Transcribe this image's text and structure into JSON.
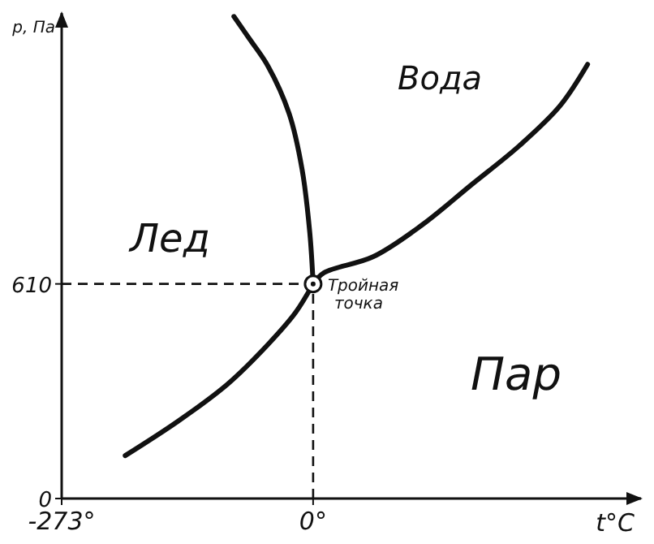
{
  "chart_data": {
    "type": "line",
    "xlabel": "t°C",
    "ylabel": "p, Па",
    "xlim": [
      -273,
      356
    ],
    "ylim": [
      0,
      1380
    ],
    "xticks": [
      {
        "value": -273,
        "label": "-273°"
      },
      {
        "value": 0,
        "label": "0°"
      }
    ],
    "yticks": [
      0,
      610
    ],
    "line_style": "solid",
    "marker": "none",
    "series": [
      {
        "color": "#111111",
        "x": [
          -204,
          -146,
          -93,
          -49,
          -19,
          0
        ],
        "values": [
          122,
          221,
          325,
          438,
          529,
          610
        ]
      },
      {
        "color": "#111111",
        "x": [
          0,
          -3.6,
          -12,
          -26,
          -49,
          -69,
          -86
        ],
        "values": [
          610,
          755,
          936,
          1094,
          1229,
          1306,
          1370
        ]
      },
      {
        "color": "#111111",
        "x": [
          0,
          12,
          65,
          118,
          171,
          224,
          268,
          298
        ],
        "values": [
          610,
          642,
          687,
          777,
          890,
          1003,
          1116,
          1234
        ]
      },
      {
        "type": "scatter",
        "marker": "circle",
        "color": "#111111",
        "x": [
          0
        ],
        "values": [
          610
        ]
      }
    ],
    "ref_lines": [
      {
        "axis": "y",
        "value": 610,
        "line_style": "dashed"
      },
      {
        "axis": "x",
        "value": 0,
        "line_style": "dashed"
      }
    ],
    "annotations": [
      {
        "text": "Тройная точка",
        "x": 0,
        "y": 610
      },
      "Вода",
      "Лед",
      "Пар"
    ]
  }
}
